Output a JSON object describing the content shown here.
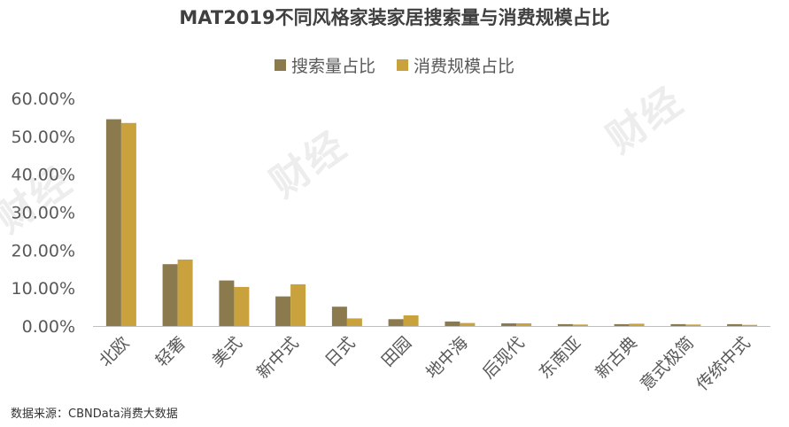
{
  "watermark": "财经",
  "source_note": "数据来源：CBNData消费大数据",
  "colors": {
    "search": "#8B7A4D",
    "consumption": "#C9A23E",
    "axis": "#bfbfbf"
  },
  "chart_data": {
    "type": "bar",
    "title": "MAT2019不同风格家装家居搜索量与消费规模占比",
    "categories": [
      "北欧",
      "轻奢",
      "美式",
      "新中式",
      "日式",
      "田园",
      "地中海",
      "后现代",
      "东南亚",
      "新古典",
      "意式极简",
      "传统中式"
    ],
    "series": [
      {
        "name": "搜索量占比",
        "values": [
          54.5,
          16.3,
          12.0,
          7.8,
          5.1,
          1.8,
          1.2,
          0.7,
          0.5,
          0.5,
          0.5,
          0.5
        ]
      },
      {
        "name": "消费规模占比",
        "values": [
          53.5,
          17.5,
          10.3,
          11.0,
          2.0,
          2.8,
          0.8,
          0.7,
          0.4,
          0.6,
          0.4,
          0.3
        ]
      }
    ],
    "yticks": [
      "0.00%",
      "10.00%",
      "20.00%",
      "30.00%",
      "40.00%",
      "50.00%",
      "60.00%"
    ],
    "ylim": [
      0,
      60
    ],
    "xlabel": "",
    "ylabel": "",
    "grid": false,
    "legend": "top-center"
  }
}
